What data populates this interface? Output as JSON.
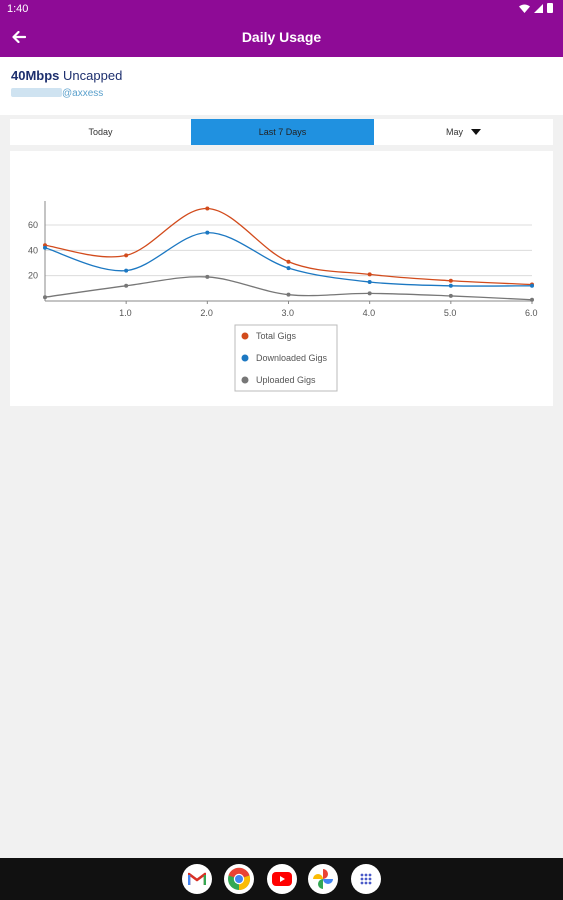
{
  "status_bar": {
    "time": "1:40"
  },
  "app_bar": {
    "title": "Daily Usage"
  },
  "account": {
    "plan_speed": "40Mbps",
    "plan_type": "Uncapped",
    "email_domain": "@axxess"
  },
  "tabs": {
    "today": "Today",
    "week": "Last 7 Days",
    "month": "May"
  },
  "colors": {
    "brand": "#8e0b96",
    "active_tab": "#2091e0",
    "total": "#d24b1c",
    "downloaded": "#1c78c2",
    "uploaded": "#777777"
  },
  "chart_data": {
    "type": "line",
    "x": [
      0,
      1,
      2,
      3,
      4,
      5,
      6
    ],
    "xticks": [
      "1.0",
      "2.0",
      "3.0",
      "4.0",
      "5.0",
      "6.0"
    ],
    "yticks": [
      "20",
      "40",
      "60"
    ],
    "xlim": [
      0,
      6
    ],
    "ylim": [
      0,
      75
    ],
    "grid": true,
    "legend_position": "bottom-center",
    "series": [
      {
        "name": "Total Gigs",
        "color": "#d24b1c",
        "values": [
          44,
          36,
          73,
          31,
          21,
          16,
          13
        ]
      },
      {
        "name": "Downloaded Gigs",
        "color": "#1c78c2",
        "values": [
          42,
          24,
          54,
          26,
          15,
          12,
          12
        ]
      },
      {
        "name": "Uploaded Gigs",
        "color": "#777777",
        "values": [
          3,
          12,
          19,
          5,
          6,
          4,
          1
        ]
      }
    ]
  },
  "dock": {
    "apps": [
      "gmail-icon",
      "chrome-icon",
      "youtube-icon",
      "photos-icon",
      "app-drawer-icon"
    ]
  }
}
